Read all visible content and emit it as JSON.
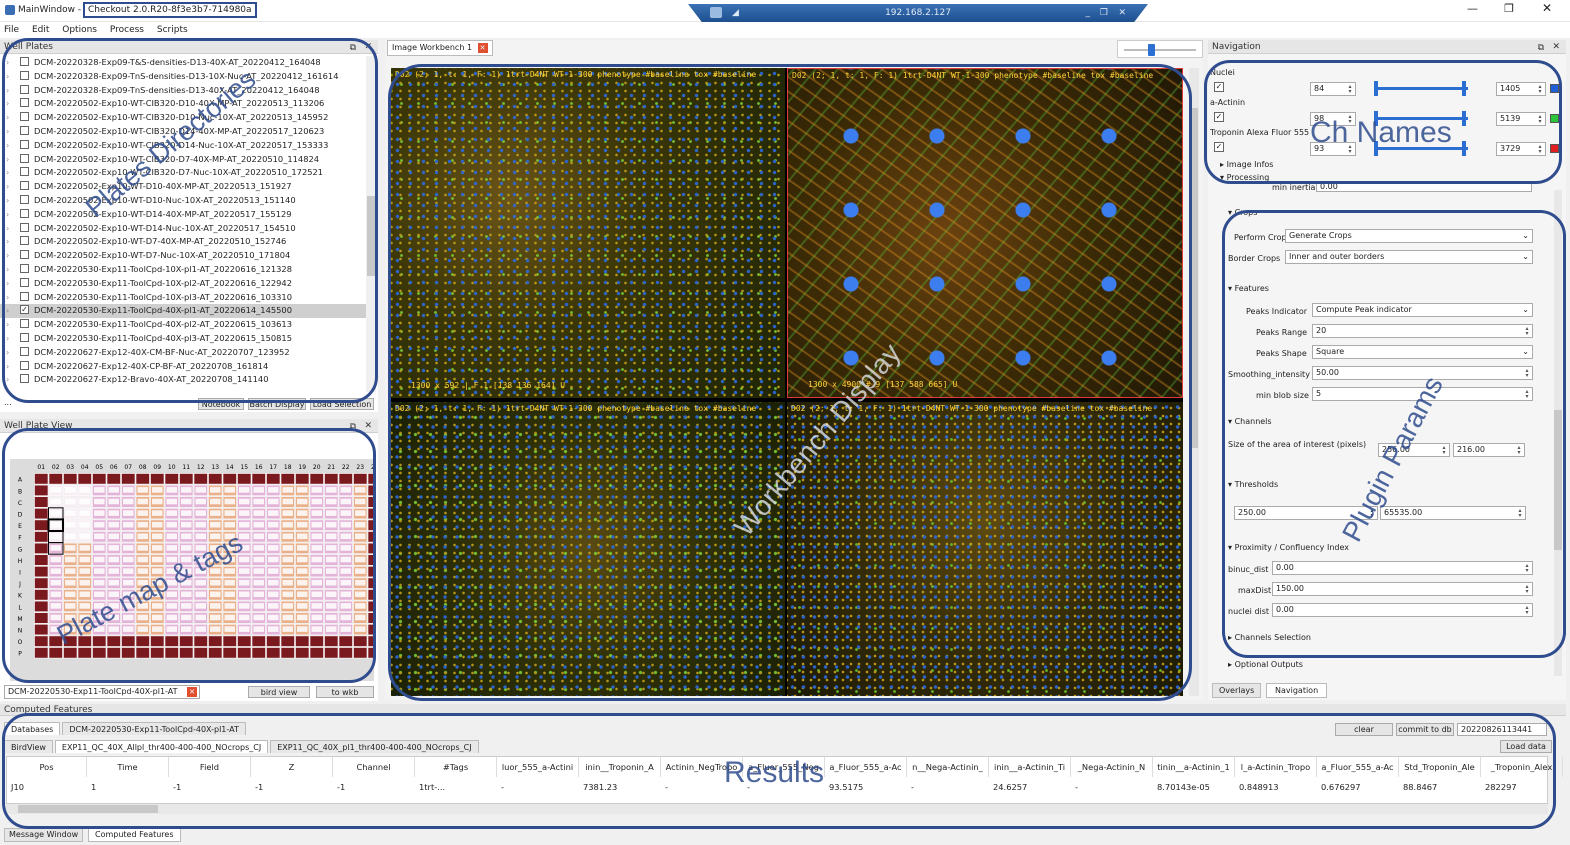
{
  "window": {
    "title": "MainWindow - ",
    "version": "Checkout 2.0.R20-8f3e3b7-714980a",
    "remote_host": "192.168.2.127"
  },
  "menu": [
    "File",
    "Edit",
    "Options",
    "Process",
    "Scripts"
  ],
  "well_plates": {
    "title": "Well Plates",
    "items": [
      "DCM-20220328-Exp09-T&S-densities-D13-40X-AT_20220412_164048",
      "DCM-20220328-Exp09-TnS-densities-D13-10X-Nuc-AT_20220412_161614",
      "DCM-20220328-Exp09-TnS-densities-D13-40X-AT_20220412_164048",
      "DCM-20220502-Exp10-WT-CIB320-D10-40X-MP-AT_20220513_113206",
      "DCM-20220502-Exp10-WT-CIB320-D10-Nuc-10X-AT_20220513_145952",
      "DCM-20220502-Exp10-WT-CIB320-D14-40X-MP-AT_20220517_120623",
      "DCM-20220502-Exp10-WT-CIB320-D14-Nuc-10X-AT_20220517_153333",
      "DCM-20220502-Exp10-WT-CIB320-D7-40X-MP-AT_20220510_114824",
      "DCM-20220502-Exp10-WT-CIB320-D7-Nuc-10X-AT_20220510_172521",
      "DCM-20220502-Exp10-WT-D10-40X-MP-AT_20220513_151927",
      "DCM-20220502-Exp10-WT-D10-Nuc-10X-AT_20220513_151140",
      "DCM-20220502-Exp10-WT-D14-40X-MP-AT_20220517_155129",
      "DCM-20220502-Exp10-WT-D14-Nuc-10X-AT_20220517_154510",
      "DCM-20220502-Exp10-WT-D7-40X-MP-AT_20220510_152746",
      "DCM-20220502-Exp10-WT-D7-Nuc-10X-AT_20220510_171804",
      "DCM-20220530-Exp11-ToolCpd-10X-pl1-AT_20220616_121328",
      "DCM-20220530-Exp11-ToolCpd-10X-pl2-AT_20220616_122942",
      "DCM-20220530-Exp11-ToolCpd-10X-pl3-AT_20220616_103310",
      "DCM-20220530-Exp11-ToolCpd-40X-pl1-AT_20220614_145500",
      "DCM-20220530-Exp11-ToolCpd-40X-pl2-AT_20220615_103613",
      "DCM-20220530-Exp11-ToolCpd-40X-pl3-AT_20220615_150815",
      "DCM-20220627-Exp12-40X-CM-BF-Nuc-AT_20220707_123952",
      "DCM-20220627-Exp12-40X-CP-BF-AT_20220708_161814",
      "DCM-20220627-Exp12-Bravo-40X-AT_20220708_141140"
    ],
    "selected_index": 18,
    "buttons": [
      "Notebook",
      "Batch Display",
      "Load Selection"
    ]
  },
  "plate_view": {
    "title": "Well Plate View",
    "cols": [
      "01",
      "02",
      "03",
      "04",
      "05",
      "06",
      "07",
      "08",
      "09",
      "10",
      "11",
      "12",
      "13",
      "14",
      "15",
      "16",
      "17",
      "18",
      "19",
      "20",
      "21",
      "22",
      "23",
      "24"
    ],
    "rows": [
      "A",
      "B",
      "C",
      "D",
      "E",
      "F",
      "G",
      "H",
      "I",
      "J",
      "K",
      "L",
      "M",
      "N",
      "O",
      "P"
    ],
    "tab": "DCM-20220530-Exp11-ToolCpd-40X-pl1-AT",
    "bird_view": "bird view",
    "to_wkb": "to wkb",
    "colors": {
      "dark": "#7a1a1f",
      "orange": "#eab08a",
      "pink": "#e3b3d8"
    }
  },
  "workbench": {
    "tab": "Image Workbench 1",
    "panels": [
      {
        "header": "D02 (2; 1, t: 1, F: 1) 1trt-D4NT WT-1-300 phenotype #baseline tox #baseline",
        "footer": "1300 x 592 | F 1 [138 136 164] U"
      },
      {
        "header": "D02 (2; 1, t: 1, F: 1) 1trt-D4NT WT-1-300 phenotype #baseline tox #baseline",
        "footer": "1300 x 4900 # 9 [137 588 665] U"
      },
      {
        "header": "D02 (2; 1, t: 1, F: 1) 1trt-D4NT WT-1-300 phenotype #baseline tox #baseline",
        "footer": ""
      },
      {
        "header": "D02 (2; 1, t: 1, F: 1) 1trt-D4NT WT-1-300 phenotype #baseline tox #baseline",
        "footer": ""
      }
    ]
  },
  "navigation": {
    "title": "Navigation",
    "channels": [
      {
        "name": "Nuclei",
        "min": "84",
        "max": "1405",
        "color": "#1e5fd8"
      },
      {
        "name": "a-Actinin",
        "min": "98",
        "max": "5139",
        "color": "#29c43a"
      },
      {
        "name": "Troponin Alexa Fluor 555",
        "min": "93",
        "max": "3729",
        "color": "#e02020"
      }
    ],
    "image_infos": "Image Infos",
    "processing": "Processing",
    "min_inertia_label": "min inertia",
    "min_inertia": "0.00",
    "tabs": [
      "Overlays",
      "Navigation"
    ]
  },
  "plugin": {
    "crops": "Crops",
    "perform_crop_label": "Perform Crop",
    "perform_crop": "Generate Crops",
    "border_crops_label": "Border Crops",
    "border_crops": "Inner and outer borders",
    "features": "Features",
    "peaks_indicator_label": "Peaks Indicator",
    "peaks_indicator": "Compute Peak indicator",
    "peaks_range_label": "Peaks Range",
    "peaks_range": "20",
    "peaks_shape_label": "Peaks Shape",
    "peaks_shape": "Square",
    "smoothing_label": "Smoothing_intensity",
    "smoothing": "50.00",
    "min_blob_label": "min blob size",
    "min_blob": "5",
    "channels": "Channels",
    "area_label": "Size of the area of interest (pixels)",
    "area_w": "256.00",
    "area_h": "216.00",
    "thresholds": "Thresholds",
    "th_min": "250.00",
    "th_max": "65535.00",
    "proximity": "Proximity / Confluency Index",
    "binuc_label": "binuc_dist",
    "binuc": "0.00",
    "maxdist_label": "maxDist",
    "maxdist": "150.00",
    "nuclei_label": "nuclei dist",
    "nuclei": "0.00",
    "channels_selection": "Channels Selection",
    "optional_outputs": "Optional Outputs"
  },
  "results": {
    "title": "Computed Features",
    "tabs": [
      "Databases",
      "DCM-20220530-Exp11-ToolCpd-40X-pl1-AT"
    ],
    "subtabs": [
      "BirdView",
      "EXP11_QC_40X_Allpl_thr400-400-400_NOcrops_CJ",
      "EXP11_QC_40X_pl1_thr400-400-400_NOcrops_CJ"
    ],
    "clear": "clear",
    "commit": "commit to db",
    "db_id": "20220826113441",
    "load": "Load data",
    "columns": [
      "Pos",
      "Time",
      "Field",
      "Z",
      "Channel",
      "#Tags",
      "luor_555_a-Actini",
      "inin__Troponin_A",
      "Actinin_NegTropo",
      "a_Fluor_555_Neg",
      "a_Fluor_555_a-Ac",
      "n__Nega-Actinin_",
      "inin__a-Actinin_Ti",
      "_Nega-Actinin_N",
      "tinin__a-Actinin_1",
      "l_a-Actinin_Tropo",
      "a_Fluor_555_a-Ac",
      "Std_Troponin_Ale",
      "_Troponin_Alex"
    ],
    "row": [
      "J10",
      "1",
      "-1",
      "-1",
      "-1",
      "1trt-...",
      "-",
      "7381.23",
      "-",
      "-",
      "93.5175",
      "-",
      "24.6257",
      "-",
      "8.70143e-05",
      "0.848913",
      "0.676297",
      "88.8467",
      "282297"
    ]
  },
  "bottom_tabs": [
    "Message Window",
    "Computed Features"
  ],
  "annotations": {
    "plates": "Plates Directories",
    "plate_map": "Plate map & tags",
    "workbench": "Workbench Display",
    "ch_names": "Ch Names",
    "plugin": "Plugin Params",
    "results": "Results"
  }
}
